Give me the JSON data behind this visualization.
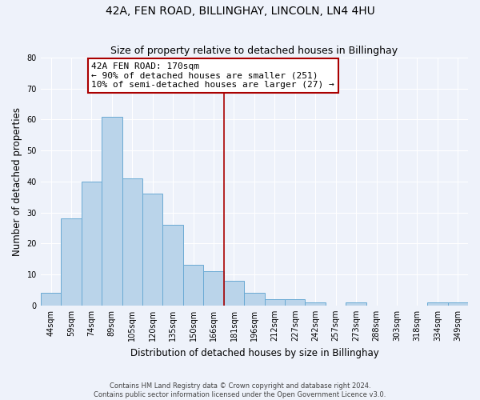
{
  "title": "42A, FEN ROAD, BILLINGHAY, LINCOLN, LN4 4HU",
  "subtitle": "Size of property relative to detached houses in Billinghay",
  "xlabel": "Distribution of detached houses by size in Billinghay",
  "ylabel": "Number of detached properties",
  "categories": [
    "44sqm",
    "59sqm",
    "74sqm",
    "89sqm",
    "105sqm",
    "120sqm",
    "135sqm",
    "150sqm",
    "166sqm",
    "181sqm",
    "196sqm",
    "212sqm",
    "227sqm",
    "242sqm",
    "257sqm",
    "273sqm",
    "288sqm",
    "303sqm",
    "318sqm",
    "334sqm",
    "349sqm"
  ],
  "values": [
    4,
    28,
    40,
    61,
    41,
    36,
    26,
    13,
    11,
    8,
    4,
    2,
    2,
    1,
    0,
    1,
    0,
    0,
    0,
    1,
    1
  ],
  "bar_color": "#bad4ea",
  "bar_edge_color": "#6aaad4",
  "vline_x": 8.5,
  "vline_color": "#aa0000",
  "annotation_box_color": "#ffffff",
  "annotation_box_edge": "#aa0000",
  "ylim": [
    0,
    80
  ],
  "yticks": [
    0,
    10,
    20,
    30,
    40,
    50,
    60,
    70,
    80
  ],
  "footnote1": "Contains HM Land Registry data © Crown copyright and database right 2024.",
  "footnote2": "Contains public sector information licensed under the Open Government Licence v3.0.",
  "bg_color": "#eef2fa",
  "title_fontsize": 10,
  "subtitle_fontsize": 9,
  "label_fontsize": 8.5,
  "tick_fontsize": 7,
  "ann_fontsize": 8
}
